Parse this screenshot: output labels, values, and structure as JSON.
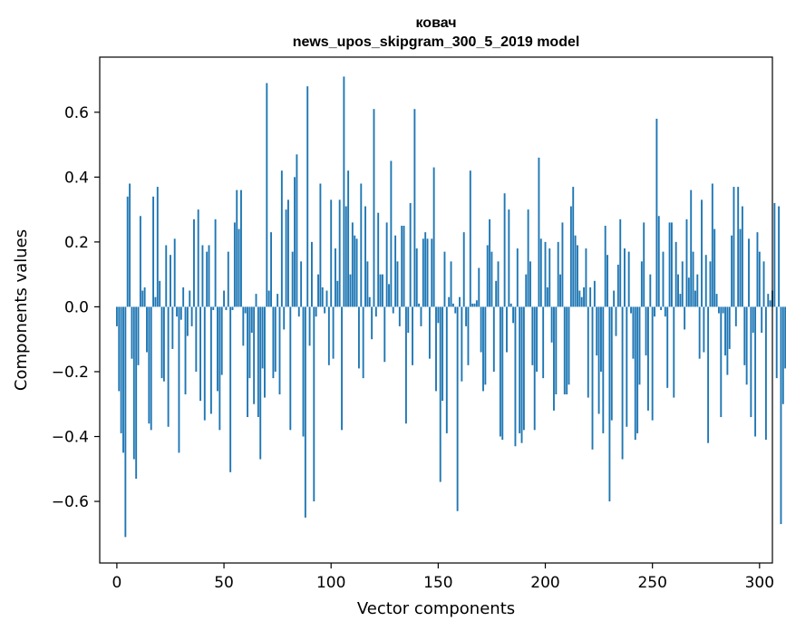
{
  "chart_data": {
    "type": "bar",
    "title": "ковач",
    "subtitle": "news_upos_skipgram_300_5_2019 model",
    "xlabel": "Vector components",
    "ylabel": "Components values",
    "xlim": [
      -8,
      306
    ],
    "ylim": [
      -0.79,
      0.77
    ],
    "xticks": [
      0,
      50,
      100,
      150,
      200,
      250,
      300
    ],
    "xtick_labels": [
      "0",
      "50",
      "100",
      "150",
      "200",
      "250",
      "300"
    ],
    "yticks": [
      -0.6,
      -0.4,
      -0.2,
      0.0,
      0.2,
      0.4,
      0.6
    ],
    "ytick_labels": [
      "−0.6",
      "−0.4",
      "−0.2",
      "0.0",
      "0.2",
      "0.4",
      "0.6"
    ],
    "grid": false,
    "bar_color": "#1f77b4",
    "values": [
      -0.06,
      -0.26,
      -0.39,
      -0.45,
      -0.71,
      0.34,
      0.38,
      -0.16,
      -0.47,
      -0.53,
      -0.18,
      0.28,
      0.05,
      0.06,
      -0.14,
      -0.36,
      -0.38,
      0.34,
      0.03,
      0.37,
      0.08,
      -0.22,
      -0.23,
      0.19,
      -0.37,
      0.16,
      -0.13,
      0.21,
      -0.03,
      -0.45,
      -0.04,
      0.06,
      -0.27,
      -0.09,
      0.05,
      -0.06,
      0.27,
      -0.2,
      0.3,
      -0.29,
      0.19,
      -0.35,
      0.17,
      0.19,
      -0.33,
      -0.01,
      0.27,
      -0.26,
      -0.38,
      -0.21,
      0.05,
      -0.01,
      0.17,
      -0.51,
      -0.01,
      0.26,
      0.36,
      0.24,
      0.36,
      -0.12,
      -0.02,
      -0.34,
      -0.22,
      -0.08,
      -0.3,
      0.04,
      -0.34,
      -0.47,
      -0.19,
      -0.28,
      0.69,
      0.05,
      0.23,
      -0.22,
      -0.2,
      0.04,
      -0.27,
      0.42,
      -0.07,
      0.3,
      0.33,
      -0.38,
      0.17,
      0.4,
      0.47,
      -0.03,
      0.14,
      -0.4,
      -0.65,
      0.68,
      -0.12,
      0.2,
      -0.6,
      -0.03,
      0.1,
      0.38,
      0.06,
      -0.02,
      0.05,
      -0.18,
      0.33,
      -0.16,
      0.18,
      0.08,
      0.33,
      -0.38,
      0.71,
      0.31,
      0.42,
      0.1,
      0.26,
      0.22,
      0.21,
      -0.19,
      0.38,
      -0.22,
      0.31,
      0.14,
      0.03,
      -0.1,
      0.61,
      -0.03,
      0.29,
      0.1,
      0.1,
      -0.17,
      0.26,
      0.07,
      0.45,
      -0.02,
      0.22,
      0.14,
      -0.06,
      0.25,
      0.25,
      -0.36,
      -0.08,
      0.32,
      -0.18,
      0.61,
      0.18,
      0.01,
      -0.06,
      0.21,
      0.23,
      0.21,
      -0.16,
      0.21,
      0.43,
      -0.26,
      -0.05,
      -0.54,
      -0.29,
      0.17,
      -0.39,
      0.03,
      0.14,
      0.01,
      -0.02,
      -0.63,
      0.03,
      -0.23,
      0.23,
      -0.06,
      -0.18,
      0.42,
      0.01,
      0.01,
      0.02,
      0.12,
      -0.14,
      -0.26,
      -0.24,
      0.19,
      0.27,
      0.17,
      -0.2,
      0.08,
      0.14,
      -0.4,
      -0.41,
      0.35,
      -0.14,
      0.3,
      0.01,
      -0.05,
      -0.43,
      0.18,
      -0.39,
      -0.42,
      -0.38,
      0.1,
      0.3,
      0.14,
      -0.18,
      -0.38,
      -0.2,
      0.46,
      0.21,
      -0.22,
      0.2,
      0.06,
      0.18,
      -0.11,
      -0.32,
      -0.27,
      0.2,
      0.1,
      0.26,
      -0.27,
      -0.27,
      -0.24,
      0.31,
      0.37,
      0.22,
      0.19,
      0.05,
      0.03,
      0.06,
      0.18,
      -0.28,
      0.06,
      -0.44,
      0.08,
      -0.15,
      -0.33,
      -0.2,
      -0.39,
      0.25,
      0.16,
      -0.6,
      -0.35,
      0.05,
      -0.09,
      0.13,
      0.27,
      -0.47,
      0.18,
      -0.37,
      0.17,
      -0.02,
      -0.16,
      -0.41,
      -0.39,
      -0.24,
      0.14,
      0.26,
      -0.15,
      -0.32,
      0.1,
      -0.35,
      -0.03,
      0.58,
      0.28,
      -0.01,
      0.17,
      -0.03,
      -0.25,
      0.26,
      0.26,
      -0.28,
      0.2,
      0.1,
      0.04,
      0.14,
      -0.07,
      0.27,
      0.09,
      0.36,
      0.17,
      0.05,
      0.1,
      -0.16,
      0.33,
      -0.14,
      0.16,
      -0.42,
      0.14,
      0.38,
      0.24,
      0.04,
      -0.02,
      -0.34,
      -0.02,
      -0.15,
      -0.21,
      -0.13,
      0.22,
      0.37,
      -0.06,
      0.37,
      0.24,
      0.31,
      -0.18,
      -0.24,
      0.21,
      -0.34,
      -0.08,
      -0.4,
      0.23,
      0.17,
      -0.08,
      0.14,
      -0.41,
      0.04,
      0.02,
      0.05,
      0.32,
      -0.22,
      0.31,
      -0.67,
      -0.3,
      -0.19,
      0.17,
      -0.1,
      0.01,
      0.11
    ]
  }
}
